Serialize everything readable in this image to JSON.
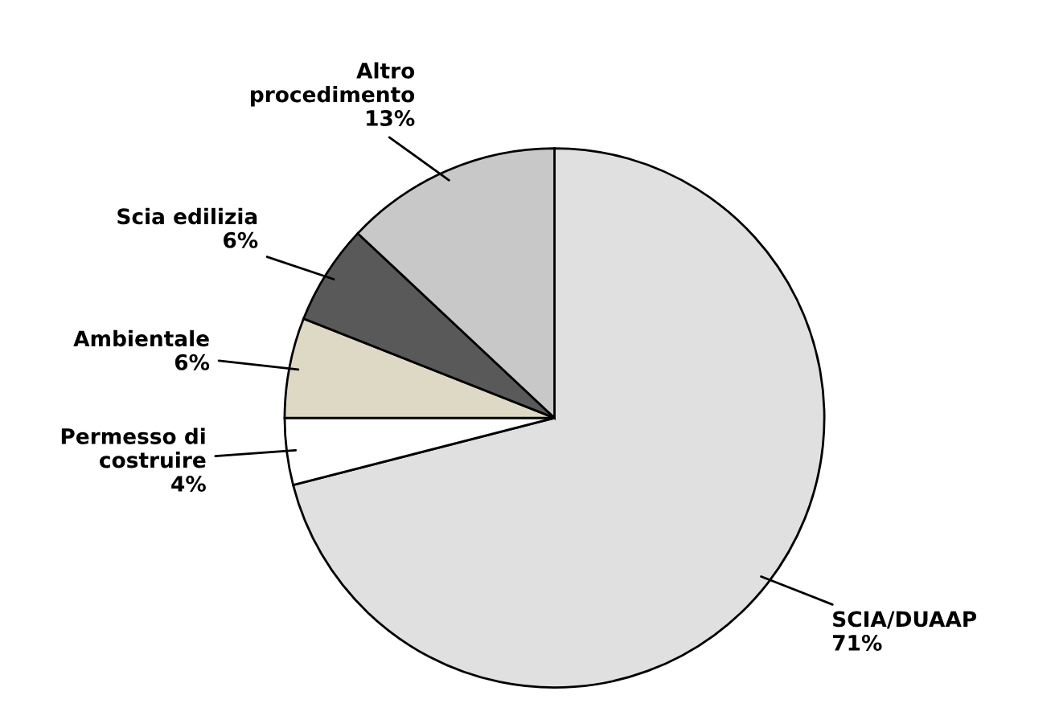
{
  "chart_data": {
    "type": "pie",
    "categories": [
      "SCIA/DUAAP",
      "Permesso di\ncostruire",
      "Ambientale",
      "Scia edilizia",
      "Altro\nprocedimento"
    ],
    "values": [
      71,
      4,
      6,
      6,
      13
    ],
    "value_labels": [
      "71%",
      "4%",
      "6%",
      "6%",
      "13%"
    ],
    "colors": [
      "#e0e0e0",
      "#ffffff",
      "#ddd9c4",
      "#595959",
      "#c8c8c8"
    ],
    "legend": false
  }
}
